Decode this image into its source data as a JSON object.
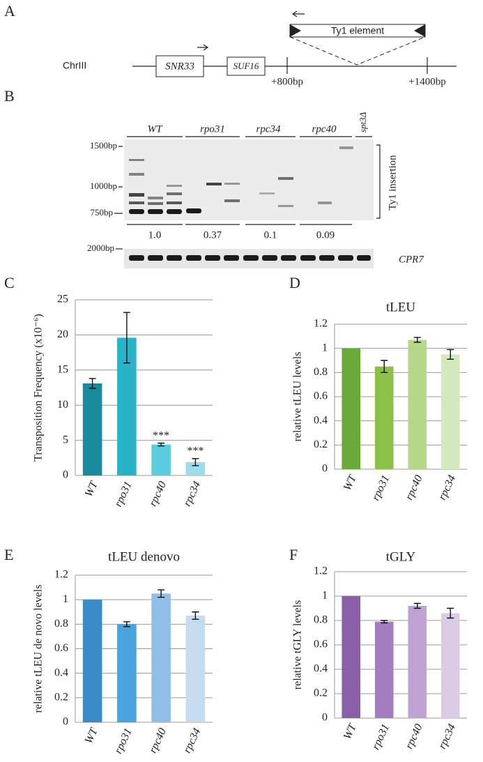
{
  "diagram": {
    "label": "A",
    "chromosome": "ChrIII",
    "genes": [
      "SNR33",
      "SUF16"
    ],
    "positions": [
      "+800bp",
      "+1400bp"
    ],
    "element": "Ty1 element"
  },
  "gel": {
    "label": "B",
    "lanes": [
      "WT",
      "rpo31",
      "rpc34",
      "rpc40",
      "spt3Δ"
    ],
    "markers": [
      "1500bp",
      "1000bp",
      "750bp"
    ],
    "insertion_label": "Ty1 insertion",
    "quantities": [
      "1.0",
      "0.37",
      "0.1",
      "0.09"
    ],
    "control_marker": "2000bp",
    "control_label": "CPR7"
  },
  "chart_data": [
    {
      "type": "bar",
      "label": "C",
      "y_label": "Transposition Frequency (x10⁻⁶)",
      "categories": [
        "WT",
        "rpo31",
        "rpc40",
        "rpc34"
      ],
      "values": [
        13.1,
        19.6,
        4.4,
        1.9
      ],
      "errors": [
        0.7,
        3.6,
        0.2,
        0.5
      ],
      "annotations": [
        null,
        null,
        "***",
        "***"
      ],
      "colors": [
        "#1a8a9c",
        "#2ab2c9",
        "#5ccbe0",
        "#9ddcea"
      ],
      "ylim": [
        0,
        25
      ],
      "yticks": [
        0,
        5,
        10,
        15,
        20,
        25
      ],
      "grid": true
    },
    {
      "type": "bar",
      "label": "D",
      "title": "tLEU",
      "y_label": "relative tLEU levels",
      "categories": [
        "WT",
        "rpo31",
        "rpc40",
        "rpc34"
      ],
      "values": [
        1.0,
        0.85,
        1.07,
        0.95
      ],
      "errors": [
        null,
        0.05,
        0.02,
        0.04
      ],
      "colors": [
        "#6aa83a",
        "#8cc04a",
        "#b5d88a",
        "#d4e8bd"
      ],
      "ylim": [
        0,
        1.2
      ],
      "yticks": [
        0,
        0.2,
        0.4,
        0.6,
        0.8,
        1,
        1.2
      ],
      "grid": true
    },
    {
      "type": "bar",
      "label": "E",
      "title": "tLEU denovo",
      "y_label": "relative tLEU de novo levels",
      "categories": [
        "WT",
        "rpo31",
        "rpc40",
        "rpc34"
      ],
      "values": [
        1.0,
        0.8,
        1.05,
        0.87
      ],
      "errors": [
        null,
        0.02,
        0.03,
        0.03
      ],
      "colors": [
        "#3a8cc8",
        "#4aa3dc",
        "#8fbfe6",
        "#c5dcf0"
      ],
      "ylim": [
        0,
        1.2
      ],
      "yticks": [
        0,
        0.2,
        0.4,
        0.6,
        0.8,
        1,
        1.2
      ],
      "grid": true
    },
    {
      "type": "bar",
      "label": "F",
      "title": "tGLY",
      "y_label": "relative tGLY levels",
      "categories": [
        "WT",
        "rpo31",
        "rpc40",
        "rpc34"
      ],
      "values": [
        1.0,
        0.79,
        0.92,
        0.86
      ],
      "errors": [
        null,
        0.01,
        0.02,
        0.04
      ],
      "colors": [
        "#8a5fa8",
        "#a47cc0",
        "#c0a2d4",
        "#dccbe6"
      ],
      "ylim": [
        0,
        1.2
      ],
      "yticks": [
        0,
        0.2,
        0.4,
        0.6,
        0.8,
        1,
        1.2
      ],
      "grid": true
    }
  ]
}
